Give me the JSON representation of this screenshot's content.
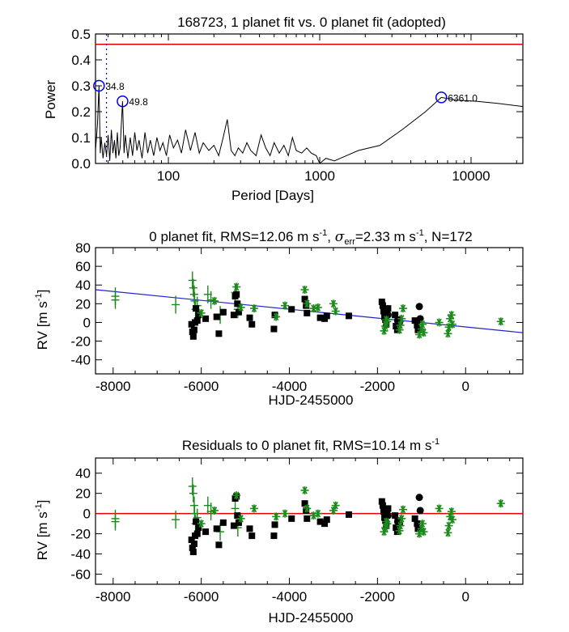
{
  "colors": {
    "axis": "#000000",
    "periodogram": "#000000",
    "fap": "#e00000",
    "alias": "#0000ee",
    "peak": "#0000ee",
    "trend": "#2222cc",
    "zero": "#e00000",
    "green": "#1a8a1a",
    "black": "#000000"
  },
  "chart_data": [
    {
      "type": "line",
      "title": "168723,  1 planet fit vs. 0 planet fit (adopted)",
      "xlabel": "Period [Days]",
      "ylabel": "Power",
      "xscale": "log",
      "xlim": [
        33,
        22000
      ],
      "ylim": [
        0.0,
        0.5
      ],
      "xticks": [
        100,
        1000,
        10000
      ],
      "xtick_labels": [
        "100",
        "1000",
        "10000"
      ],
      "yticks": [
        0.0,
        0.1,
        0.2,
        0.3,
        0.4,
        0.5
      ],
      "ytick_labels": [
        "0.0",
        "0.1",
        "0.2",
        "0.3",
        "0.4",
        "0.5"
      ],
      "fap_level": 0.46,
      "alias_period": 39.0,
      "peaks": [
        {
          "period": 34.8,
          "power": 0.3,
          "label": "34.8"
        },
        {
          "period": 49.8,
          "power": 0.24,
          "label": "49.8"
        },
        {
          "period": 6361.0,
          "power": 0.255,
          "label": "6361.0"
        }
      ],
      "x": [
        33,
        34,
        34.8,
        35.5,
        36,
        37,
        38,
        39,
        40,
        41,
        42,
        43,
        44,
        45,
        46,
        47,
        48,
        49.8,
        51,
        52,
        54,
        56,
        58,
        60,
        62,
        64,
        67,
        70,
        73,
        76,
        80,
        84,
        88,
        92,
        97,
        102,
        108,
        115,
        122,
        130,
        140,
        150,
        160,
        170,
        185,
        200,
        215,
        230,
        245,
        260,
        275,
        290,
        310,
        330,
        350,
        380,
        410,
        440,
        470,
        500,
        540,
        580,
        620,
        660,
        700,
        760,
        820,
        880,
        950,
        1000,
        1100,
        1250,
        1500,
        1800,
        2500,
        3500,
        5000,
        6361,
        8000,
        11000,
        15000,
        22000
      ],
      "y": [
        0.05,
        0.15,
        0.3,
        0.04,
        0.1,
        0.02,
        0.08,
        0.03,
        0.11,
        0.01,
        0.13,
        0.04,
        0.09,
        0.02,
        0.12,
        0.03,
        0.06,
        0.24,
        0.04,
        0.11,
        0.02,
        0.1,
        0.03,
        0.12,
        0.05,
        0.09,
        0.02,
        0.12,
        0.04,
        0.09,
        0.03,
        0.1,
        0.05,
        0.08,
        0.03,
        0.11,
        0.06,
        0.09,
        0.04,
        0.13,
        0.05,
        0.12,
        0.04,
        0.08,
        0.05,
        0.07,
        0.03,
        0.1,
        0.17,
        0.05,
        0.03,
        0.06,
        0.04,
        0.08,
        0.05,
        0.03,
        0.11,
        0.06,
        0.03,
        0.08,
        0.04,
        0.07,
        0.03,
        0.1,
        0.05,
        0.04,
        0.06,
        0.04,
        0.03,
        0.0,
        0.02,
        0.01,
        0.03,
        0.05,
        0.07,
        0.13,
        0.2,
        0.255,
        0.245,
        0.24,
        0.232,
        0.22
      ]
    },
    {
      "type": "scatter",
      "title": "0 planet fit, RMS=12.06 m s",
      "title_sup": "-1",
      "title_mid": ", ",
      "title_sigma": "σ",
      "title_sub": "err",
      "title_rest": "=2.33 m s",
      "title_sup2": "-1",
      "title_end": ", N=172",
      "xlabel": "HJD-2455000",
      "ylabel": "RV [m s",
      "ylabel_sup": "-1",
      "ylabel_end": "]",
      "xlim": [
        -8400,
        1300
      ],
      "ylim": [
        -55,
        80
      ],
      "xticks": [
        -8000,
        -6000,
        -4000,
        -2000,
        0
      ],
      "xtick_labels": [
        "-8000",
        "-6000",
        "-4000",
        "-2000",
        "0"
      ],
      "yticks": [
        -40,
        -20,
        0,
        20,
        40,
        60,
        80
      ],
      "ytick_labels": [
        "-40",
        "-20",
        "0",
        "20",
        "40",
        "60",
        "80"
      ],
      "trend": {
        "x": [
          -8400,
          1300
        ],
        "y": [
          35,
          -11
        ]
      },
      "series": [
        {
          "name": "plus",
          "marker": "plus",
          "color": "green",
          "x": [
            -7950,
            -7950,
            -6580,
            -6200,
            -6180,
            -6160,
            -6150,
            -6130,
            -6090,
            -5850,
            -5780,
            -5570,
            -5230,
            -5170
          ],
          "y": [
            28,
            24,
            19,
            45,
            37,
            30,
            23,
            14,
            18,
            30,
            24,
            8,
            32,
            14
          ]
        },
        {
          "name": "square",
          "marker": "square",
          "color": "black",
          "x": [
            -6220,
            -6200,
            -6180,
            -6160,
            -6140,
            -6120,
            -6090,
            -6060,
            -5900,
            -5650,
            -5600,
            -5500,
            -5260,
            -5230,
            -5200,
            -5180,
            -5150,
            -4900,
            -4850,
            -4350,
            -4330,
            -3950,
            -3650,
            -3620,
            -3600,
            -3300,
            -3200,
            -3150,
            -2650,
            -1900,
            -1880,
            -1860,
            -1840,
            -1820,
            -1800,
            -1780,
            -1760,
            -1600,
            -1580,
            -1550,
            -1540,
            -1150,
            -1100,
            -1080
          ],
          "y": [
            -2,
            -10,
            -15,
            -8,
            0,
            15,
            2,
            8,
            4,
            6,
            -12,
            11,
            8,
            28,
            30,
            20,
            11,
            5,
            -2,
            -7,
            8,
            14,
            25,
            18,
            10,
            5,
            4,
            7,
            7,
            22,
            18,
            12,
            6,
            3,
            -2,
            10,
            15,
            8,
            -4,
            -8,
            3,
            2,
            -3,
            -8
          ]
        },
        {
          "name": "circle",
          "marker": "circle",
          "color": "black",
          "x": [
            -1780,
            -1760,
            -1540,
            -1500,
            -1050,
            -1030
          ],
          "y": [
            14,
            8,
            2,
            0,
            17,
            4
          ]
        },
        {
          "name": "star",
          "marker": "star",
          "color": "green",
          "x": [
            -6000,
            -5700,
            -5200,
            -5100,
            -4800,
            -4300,
            -4100,
            -3650,
            -3600,
            -3450,
            -3350,
            -3000,
            -2950,
            -1850,
            -1820,
            -1800,
            -1780,
            -1500,
            -1480,
            -1450,
            -1420,
            -1050,
            -1000,
            -980,
            -950,
            -600,
            -400,
            -380,
            -350,
            -320,
            -300,
            800
          ],
          "y": [
            10,
            23,
            38,
            16,
            15,
            6,
            18,
            35,
            20,
            15,
            16,
            20,
            12,
            -9,
            -4,
            3,
            1,
            -8,
            -3,
            4,
            15,
            -13,
            -7,
            -2,
            -11,
            0,
            -12,
            -5,
            4,
            8,
            -2,
            1
          ]
        }
      ]
    },
    {
      "type": "scatter",
      "title": "Residuals to 0 planet fit, RMS=10.14 m s",
      "title_sup": "-1",
      "xlabel": "HJD-2455000",
      "ylabel": "RV [m s",
      "ylabel_sup": "-1",
      "ylabel_end": "]",
      "xlim": [
        -8400,
        1300
      ],
      "ylim": [
        -70,
        55
      ],
      "xticks": [
        -8000,
        -6000,
        -4000,
        -2000,
        0
      ],
      "xtick_labels": [
        "-8000",
        "-6000",
        "-4000",
        "-2000",
        "0"
      ],
      "yticks": [
        -60,
        -40,
        -20,
        0,
        20,
        40
      ],
      "ytick_labels": [
        "-60",
        "-40",
        "-20",
        "0",
        "20",
        "40"
      ],
      "zero_line": 0,
      "series": [
        {
          "name": "plus",
          "marker": "plus",
          "color": "green",
          "x": [
            -7950,
            -7950,
            -6580,
            -6200,
            -6180,
            -6160,
            -6150,
            -6130,
            -6090,
            -5850,
            -5780,
            -5570,
            -5230,
            -5170
          ],
          "y": [
            -5,
            -8,
            -6,
            27,
            20,
            8,
            0,
            -10,
            -4,
            8,
            2,
            -18,
            5,
            -14
          ]
        },
        {
          "name": "square",
          "marker": "square",
          "color": "black",
          "x": [
            -6220,
            -6200,
            -6180,
            -6160,
            -6140,
            -6120,
            -6090,
            -6060,
            -5900,
            -5650,
            -5600,
            -5500,
            -5260,
            -5230,
            -5200,
            -5180,
            -5150,
            -4900,
            -4850,
            -4350,
            -4330,
            -3950,
            -3650,
            -3620,
            -3600,
            -3300,
            -3200,
            -3150,
            -2650,
            -1900,
            -1880,
            -1860,
            -1840,
            -1820,
            -1800,
            -1780,
            -1760,
            -1600,
            -1580,
            -1550,
            -1540,
            -1150,
            -1100,
            -1080
          ],
          "y": [
            -26,
            -34,
            -38,
            -30,
            -22,
            -8,
            -20,
            -14,
            -18,
            -15,
            -31,
            -9,
            -12,
            15,
            17,
            -2,
            -9,
            -15,
            -22,
            -22,
            -11,
            -5,
            10,
            3,
            -5,
            -8,
            -10,
            -6,
            -1,
            12,
            8,
            2,
            -4,
            -7,
            -12,
            0,
            5,
            -2,
            -14,
            -18,
            -7,
            -5,
            -10,
            -15
          ]
        },
        {
          "name": "circle",
          "marker": "circle",
          "color": "black",
          "x": [
            -1780,
            -1760,
            -1540,
            -1500,
            -1050,
            -1030
          ],
          "y": [
            4,
            -2,
            -8,
            -10,
            16,
            3
          ]
        },
        {
          "name": "star",
          "marker": "star",
          "color": "green",
          "x": [
            -6000,
            -5700,
            -5200,
            -5100,
            -4800,
            -4300,
            -4100,
            -3650,
            -3600,
            -3450,
            -3350,
            -3000,
            -2950,
            -1850,
            -1820,
            -1800,
            -1780,
            -1500,
            -1480,
            -1450,
            -1420,
            -1050,
            -1000,
            -980,
            -950,
            -600,
            -400,
            -380,
            -350,
            -320,
            -300,
            800
          ],
          "y": [
            -10,
            3,
            18,
            -5,
            5,
            -3,
            0,
            23,
            5,
            -2,
            0,
            3,
            8,
            -18,
            -14,
            -8,
            -10,
            -17,
            -12,
            -5,
            4,
            -20,
            -15,
            -10,
            -18,
            5,
            -19,
            -12,
            -3,
            2,
            -6,
            10
          ]
        }
      ]
    }
  ]
}
